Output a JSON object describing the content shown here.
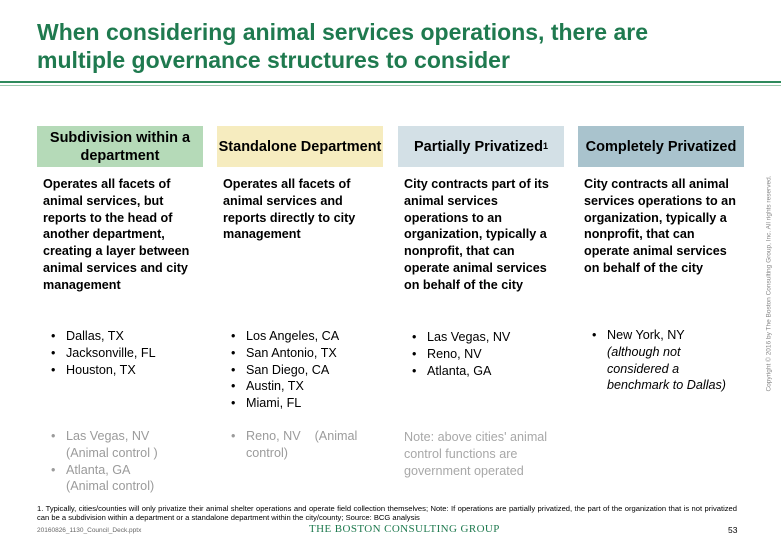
{
  "title": "When considering animal services operations, there are multiple governance structures to consider",
  "columns": [
    {
      "header": "Subdivision within a department",
      "header_color": "#b5dab8",
      "description": "Operates all facets of animal services, but reports to the head of another department, creating a layer between animal services and city management",
      "cities": [
        "Dallas, TX",
        "Jacksonville, FL",
        "Houston, TX"
      ],
      "grey_cities": [
        {
          "name": "Las Vegas, NV",
          "note": "(Animal control )"
        },
        {
          "name": "Atlanta, GA",
          "note": "(Animal control)"
        }
      ]
    },
    {
      "header": "Standalone Department",
      "header_color": "#f6ecbf",
      "description": "Operates all facets of animal services and reports directly to city management",
      "cities": [
        "Los Angeles, CA",
        "San Antonio, TX",
        "San Diego, CA",
        "Austin, TX",
        "Miami, FL"
      ],
      "grey_cities": [
        {
          "name": "Reno, NV",
          "note": "(Animal control)"
        }
      ]
    },
    {
      "header": "Partially Privatized",
      "header_sup": "1",
      "header_color": "#d3e0e6",
      "description": "City contracts part of its animal services operations to an organization, typically a nonprofit, that can operate animal services on behalf of the city",
      "cities": [
        "Las Vegas, NV",
        "Reno, NV",
        "Atlanta, GA"
      ],
      "note": "Note: above cities' animal control functions are government operated"
    },
    {
      "header": "Completely Privatized",
      "header_color": "#a9c3cd",
      "description": "City contracts all animal services operations to an organization, typically a nonprofit, that can operate animal services on behalf of the city",
      "cities": [
        "New York, NY"
      ],
      "city_note": "(although not considered a benchmark to Dallas)"
    }
  ],
  "footnote": "1. Typically, cities/counties will only privatize their animal shelter operations and operate field collection themselves; Note: If operations are partially privatized, the part of the organization that is not privatized can be a subdivision within a department or a standalone department within the city/county; Source: BCG analysis",
  "document_name": "20160826_1130_Council_Deck.pptx",
  "logo": "THE BOSTON CONSULTING GROUP",
  "page_number": "53",
  "copyright": "Copyright © 2016 by The Boston Consulting Group, Inc. All rights reserved."
}
